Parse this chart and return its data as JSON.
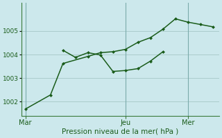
{
  "background_color": "#cce8ec",
  "grid_color": "#aacccc",
  "line_color": "#1a5c1a",
  "xlabel": "Pression niveau de la mer( hPa )",
  "xtick_labels": [
    "Mar",
    "Jeu",
    "Mer"
  ],
  "xtick_positions": [
    0,
    8,
    13
  ],
  "vline_positions": [
    0,
    8,
    13
  ],
  "ylim": [
    1001.4,
    1006.2
  ],
  "yticks": [
    1002,
    1003,
    1004,
    1005
  ],
  "series1_x": [
    0,
    2,
    3,
    5,
    6,
    7,
    8,
    9,
    10,
    11,
    12,
    13,
    14,
    15
  ],
  "series1_y": [
    1001.68,
    1002.28,
    1003.62,
    1003.92,
    1004.08,
    1004.12,
    1004.22,
    1004.52,
    1004.72,
    1005.08,
    1005.52,
    1005.38,
    1005.28,
    1005.18
  ],
  "series2_x": [
    3,
    4,
    5,
    6,
    7,
    8,
    9,
    10,
    11
  ],
  "series2_y": [
    1004.18,
    1003.88,
    1004.08,
    1003.98,
    1003.28,
    1003.32,
    1003.4,
    1003.72,
    1004.12
  ],
  "xlim": [
    -0.3,
    15.5
  ],
  "figsize": [
    3.2,
    2.0
  ],
  "dpi": 100,
  "marker_size": 2.5,
  "line_width": 1.1,
  "ylabel_fontsize": 6.5,
  "xlabel_fontsize": 7.5,
  "xtick_fontsize": 7,
  "ytick_fontsize": 6.5
}
